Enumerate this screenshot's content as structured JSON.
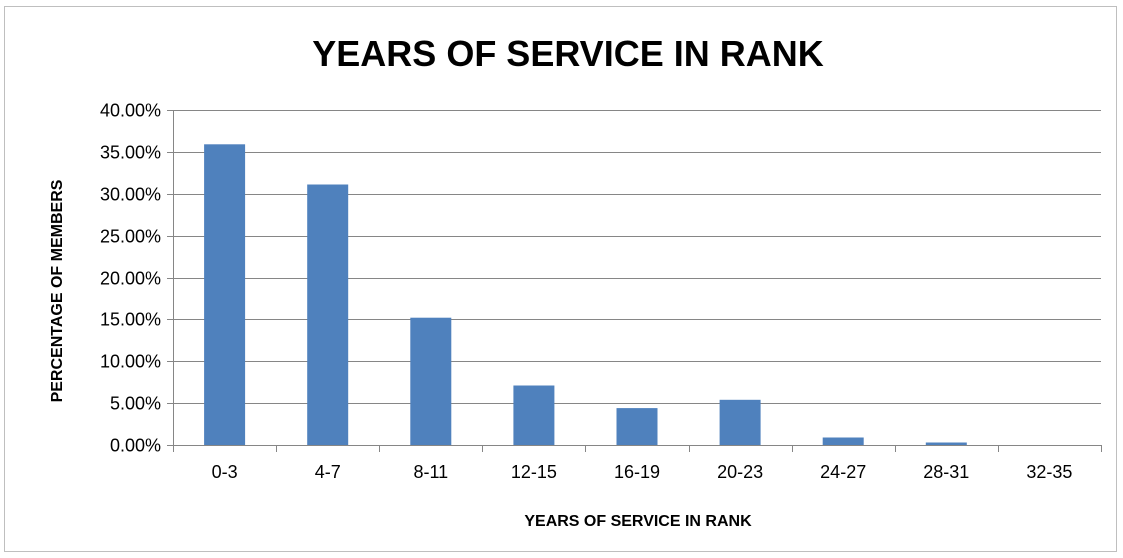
{
  "chart_data": {
    "type": "bar",
    "title": "YEARS OF SERVICE IN RANK",
    "xlabel": "YEARS OF SERVICE IN RANK",
    "ylabel": "PERCENTAGE OF MEMBERS",
    "categories": [
      "0-3",
      "4-7",
      "8-11",
      "12-15",
      "16-19",
      "20-23",
      "24-27",
      "28-31",
      "32-35"
    ],
    "values": [
      0.359,
      0.311,
      0.152,
      0.071,
      0.044,
      0.054,
      0.009,
      0.003,
      0.0
    ],
    "ylim": [
      0,
      0.4
    ],
    "yticks": [
      0,
      0.05,
      0.1,
      0.15,
      0.2,
      0.25,
      0.3,
      0.35,
      0.4
    ],
    "ytick_labels": [
      "0.00%",
      "5.00%",
      "10.00%",
      "15.00%",
      "20.00%",
      "25.00%",
      "30.00%",
      "35.00%",
      "40.00%"
    ],
    "grid": true,
    "legend": "none",
    "bar_color": "#4f81bd",
    "grid_color": "#868686"
  }
}
